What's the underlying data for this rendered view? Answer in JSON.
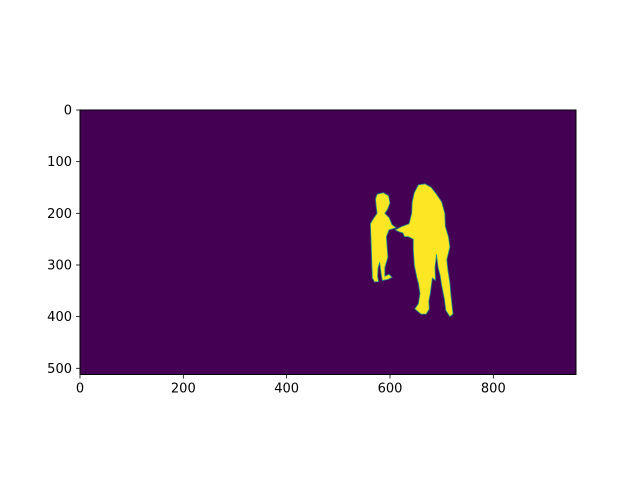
{
  "chart_data": {
    "type": "heatmap",
    "title": "",
    "xlabel": "",
    "ylabel": "",
    "colormap": "viridis",
    "image_size": {
      "width": 960,
      "height": 512
    },
    "xlim": [
      0,
      960
    ],
    "ylim": [
      512,
      0
    ],
    "x_ticks": [
      0,
      200,
      400,
      600,
      800
    ],
    "y_ticks": [
      0,
      100,
      200,
      300,
      400,
      500
    ],
    "x_tick_labels": [
      "0",
      "200",
      "400",
      "600",
      "800"
    ],
    "y_tick_labels": [
      "0",
      "100",
      "200",
      "300",
      "400",
      "500"
    ],
    "background_value": 0,
    "foreground_value": 1,
    "colors": {
      "background": "#440154",
      "foreground": "#fde725",
      "edge": "#21918c"
    },
    "regions": [
      {
        "label": "",
        "value": 1,
        "outline": [
          [
            575,
            163
          ],
          [
            587,
            160
          ],
          [
            597,
            166
          ],
          [
            600,
            180
          ],
          [
            595,
            193
          ],
          [
            590,
            200
          ],
          [
            598,
            208
          ],
          [
            604,
            222
          ],
          [
            612,
            228
          ],
          [
            598,
            232
          ],
          [
            593,
            245
          ],
          [
            594,
            260
          ],
          [
            596,
            285
          ],
          [
            590,
            305
          ],
          [
            590,
            322
          ],
          [
            598,
            318
          ],
          [
            604,
            324
          ],
          [
            596,
            328
          ],
          [
            585,
            330
          ],
          [
            583,
            318
          ],
          [
            580,
            295
          ],
          [
            577,
            305
          ],
          [
            576,
            322
          ],
          [
            578,
            332
          ],
          [
            570,
            333
          ],
          [
            566,
            325
          ],
          [
            565,
            300
          ],
          [
            564,
            270
          ],
          [
            563,
            245
          ],
          [
            562,
            220
          ],
          [
            568,
            210
          ],
          [
            575,
            200
          ],
          [
            573,
            185
          ],
          [
            572,
            172
          ]
        ]
      },
      {
        "label": "",
        "value": 1,
        "outline": [
          [
            655,
            145
          ],
          [
            668,
            143
          ],
          [
            680,
            150
          ],
          [
            690,
            163
          ],
          [
            700,
            178
          ],
          [
            706,
            200
          ],
          [
            707,
            225
          ],
          [
            713,
            245
          ],
          [
            716,
            265
          ],
          [
            710,
            290
          ],
          [
            712,
            310
          ],
          [
            716,
            335
          ],
          [
            718,
            360
          ],
          [
            722,
            395
          ],
          [
            716,
            400
          ],
          [
            708,
            388
          ],
          [
            705,
            365
          ],
          [
            700,
            340
          ],
          [
            697,
            320
          ],
          [
            693,
            305
          ],
          [
            690,
            280
          ],
          [
            687,
            305
          ],
          [
            688,
            330
          ],
          [
            682,
            325
          ],
          [
            680,
            340
          ],
          [
            678,
            355
          ],
          [
            675,
            370
          ],
          [
            676,
            385
          ],
          [
            670,
            395
          ],
          [
            660,
            395
          ],
          [
            648,
            385
          ],
          [
            655,
            375
          ],
          [
            658,
            355
          ],
          [
            655,
            335
          ],
          [
            652,
            325
          ],
          [
            647,
            300
          ],
          [
            645,
            270
          ],
          [
            645,
            250
          ],
          [
            635,
            245
          ],
          [
            628,
            245
          ],
          [
            625,
            238
          ],
          [
            618,
            236
          ],
          [
            610,
            232
          ],
          [
            624,
            225
          ],
          [
            637,
            220
          ],
          [
            642,
            200
          ],
          [
            643,
            178
          ],
          [
            647,
            160
          ]
        ]
      }
    ]
  }
}
